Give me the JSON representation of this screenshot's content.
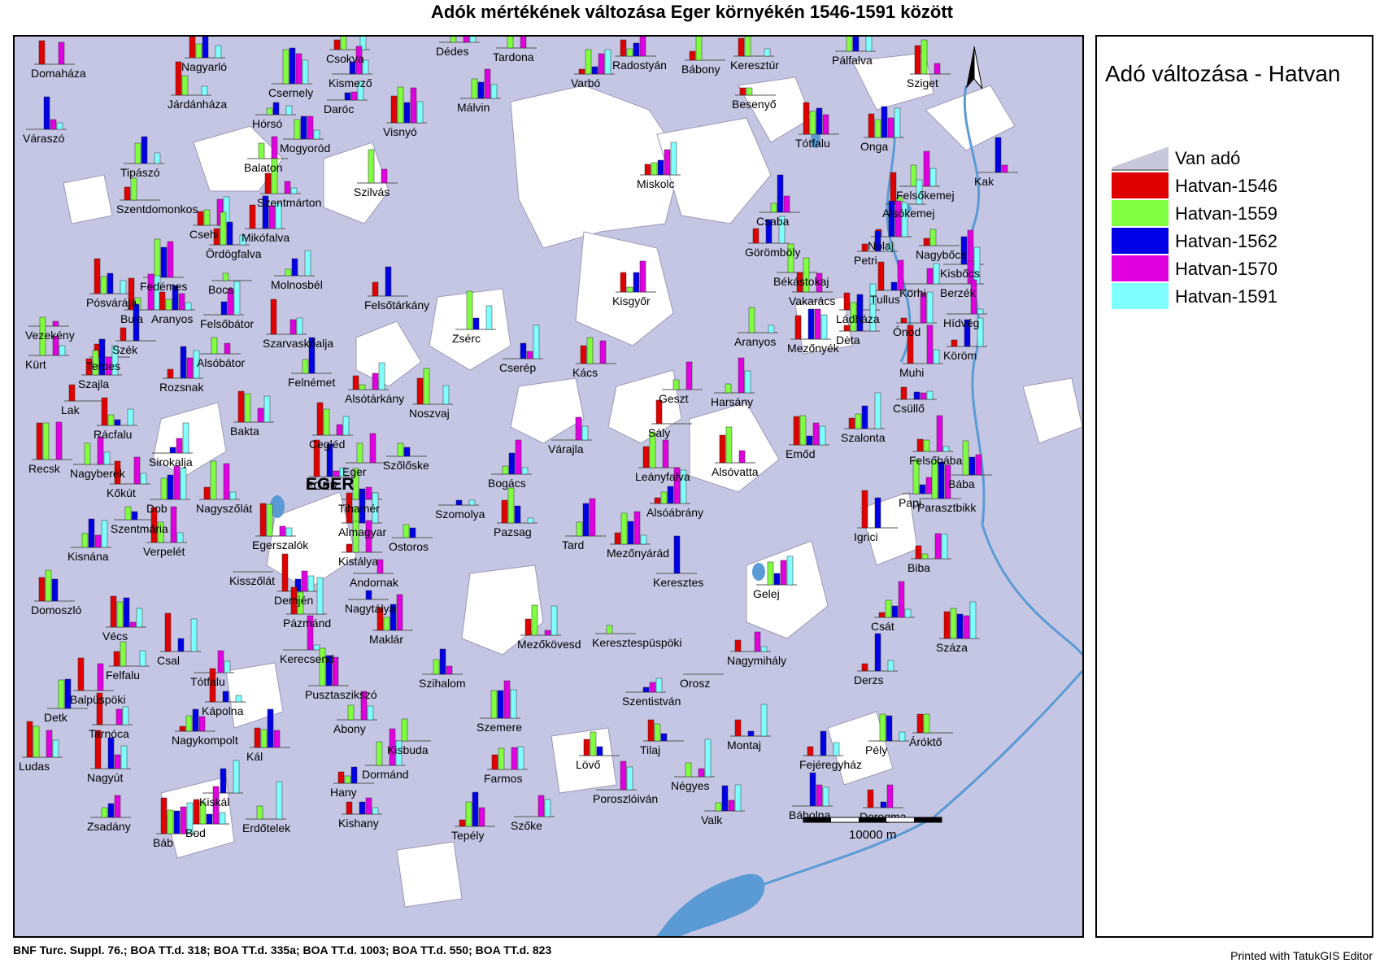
{
  "title": "Adók mértékének változása Eger környékén 1546-1591 között",
  "legend": {
    "title": "Adó változása - Hatvan",
    "items": [
      {
        "label": "Van adó",
        "color": "#c8c8dc",
        "kind": "base"
      },
      {
        "label": "Hatvan-1546",
        "color": "#e00000",
        "kind": "bar"
      },
      {
        "label": "Hatvan-1559",
        "color": "#80ff40",
        "kind": "bar"
      },
      {
        "label": "Hatvan-1562",
        "color": "#0000e6",
        "kind": "bar"
      },
      {
        "label": "Hatvan-1570",
        "color": "#e000e0",
        "kind": "bar"
      },
      {
        "label": "Hatvan-1591",
        "color": "#80ffff",
        "kind": "bar"
      }
    ]
  },
  "map": {
    "city_label": "EGER",
    "scalebar_label": "10000 m",
    "north_arrow": "north-arrow-icon",
    "colors": {
      "taxed_area": "#c5c6e3",
      "untaxed": "#ffffff",
      "water": "#5b9bd5"
    },
    "places": [
      "Domaháza",
      "Nagyarló",
      "Csokva",
      "Dédes",
      "Tardona",
      "Radostyán",
      "Keresztúr",
      "Pálfalva",
      "Járdánháza",
      "Csernely",
      "Kismező",
      "Varbó",
      "Bábony",
      "Sziget",
      "Váraszó",
      "Hórsó",
      "Daróc",
      "Málvin",
      "Besenyő",
      "Mogyoród",
      "Visnyó",
      "Tótfalu",
      "Onga",
      "Tipászó",
      "Balaton",
      "Miskolc",
      "Kak",
      "Szentdomonkos",
      "Szentmárton",
      "Szilvás",
      "Felsőkemej",
      "Alsókemej",
      "Csehi",
      "Csaba",
      "Mikófalva",
      "Nolaj",
      "Nagybőcs",
      "Ördögfalva",
      "Görömböly",
      "Petri",
      "Kisbőcs",
      "Fedémes",
      "Molnosbél",
      "Békástokaj",
      "Berzék",
      "Bocs",
      "Korhi",
      "Pósvárája",
      "Vakarács",
      "Tullus",
      "Felsőtárkány",
      "Kisgyőr",
      "Buja",
      "Aranyos",
      "Ládháza",
      "Felsőbátor",
      "Hídvég",
      "Vezekény",
      "Aranyos",
      "Dėta",
      "Ónod",
      "Szarvaskőalja",
      "Szék",
      "Zsérc",
      "Mezőnyék",
      "Kürt",
      "Terpes",
      "Alsóbátor",
      "Cserép",
      "Kács",
      "Köröm",
      "Szajla",
      "Muhi",
      "Felnémet",
      "Rozsnak",
      "Geszt",
      "Harsány",
      "Lak",
      "Alsótárkány",
      "Csüllő",
      "Noszvaj",
      "Bakta",
      "Rácfalu",
      "Sály",
      "Emőd",
      "Szalonta",
      "Cegléd",
      "Recsk",
      "Sirokalja",
      "Várajla",
      "Nagyberek",
      "Szőlőske",
      "Eger",
      "Leányfalva",
      "Alsóvatta",
      "Felsőbába",
      "Kőkút",
      "EGER",
      "Bogács",
      "Bába",
      "Papi",
      "Dob",
      "Nagyszőlát",
      "Tihamér",
      "Szomolya",
      "Alsóábrány",
      "Parasztbikk",
      "Szentmária",
      "Almagyar",
      "Igrici",
      "Pazsag",
      "Egerszalók",
      "Ostoros",
      "Tard",
      "Verpelét",
      "Kisnána",
      "Kistálya",
      "Mezőnyárád",
      "Biba",
      "Andornak",
      "Keresztes",
      "Kisszőlát",
      "Gelej",
      "Demjén",
      "Domoszló",
      "Nagytálya",
      "Pázmánd",
      "Csát",
      "Vécs",
      "Maklár",
      "Mezőkövesd",
      "Keresztespüspöki",
      "Száza",
      "Csal",
      "Kerecsend",
      "Felfalu",
      "Nagymihály",
      "Tótfalu",
      "Szihalom",
      "Derzs",
      "Orosz",
      "Pusztaszikszó",
      "Balpüspöki",
      "Kápolna",
      "Szentistván",
      "Detk",
      "Abony",
      "Szemere",
      "Montaj",
      "Tarnóca",
      "Nagykompolt",
      "Kisbuda",
      "Áróktő",
      "Pély",
      "Kál",
      "Tilaj",
      "Lövő",
      "Ludas",
      "Fejéregyház",
      "Dormánd",
      "Farmos",
      "Négyes",
      "Nagyút",
      "Hany",
      "Poroszlóiván",
      "Kiskál",
      "Valk",
      "Bábolna",
      "Dorogma",
      "Zsadány",
      "Kishany",
      "Erdőtelek",
      "Szőke",
      "Bod",
      "Tepély",
      "Báb"
    ]
  },
  "source": "BNF Turc. Suppl. 76.; BOA TT.d. 318; BOA TT.d. 335a; BOA TT.d. 1003; BOA TT.d. 550; BOA TT.d. 823",
  "printed": "Printed with TatukGIS Editor"
}
